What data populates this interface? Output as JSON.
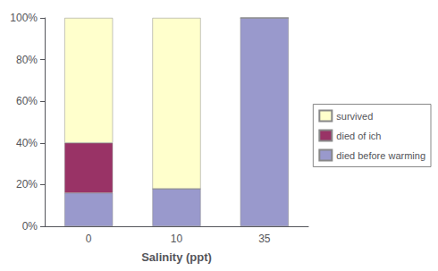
{
  "chart_data": {
    "type": "bar",
    "stacked": true,
    "xlabel": "Salinity (ppt)",
    "categories": [
      "0",
      "10",
      "35"
    ],
    "series": [
      {
        "name": "died before warming",
        "color": "#9999CC",
        "values": [
          0.16,
          0.18,
          1.0
        ]
      },
      {
        "name": "died of ich",
        "color": "#993366",
        "values": [
          0.24,
          0.0,
          0.0
        ]
      },
      {
        "name": "survived",
        "color": "#FFFFCC",
        "values": [
          0.6,
          0.82,
          0.0
        ]
      }
    ],
    "ylim": [
      0,
      1.0
    ],
    "yticks": [
      {
        "value": 0,
        "label": "0%"
      },
      {
        "value": 0.2,
        "label": "20%"
      },
      {
        "value": 0.4,
        "label": "40%"
      },
      {
        "value": 0.6,
        "label": "60%"
      },
      {
        "value": 0.8,
        "label": "80%"
      },
      {
        "value": 1.0,
        "label": "100%"
      }
    ],
    "grid": false,
    "legend": "right"
  }
}
